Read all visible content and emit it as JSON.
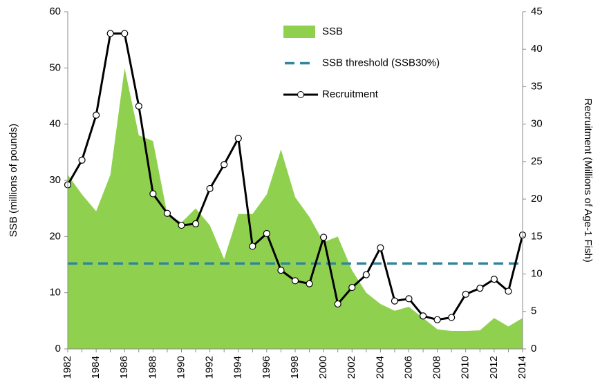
{
  "chart_data": {
    "type": "combo",
    "categories": [
      "1982",
      null,
      "1984",
      null,
      "1986",
      null,
      "1988",
      null,
      "1990",
      null,
      "1992",
      null,
      "1994",
      null,
      "1996",
      null,
      "1998",
      null,
      "2000",
      null,
      "2002",
      null,
      "2004",
      null,
      "2006",
      null,
      "2008",
      null,
      "2010",
      null,
      "2012",
      null,
      "2014"
    ],
    "series": [
      {
        "name": "SSB",
        "type": "area",
        "color": "#8fd14f",
        "values": [
          31,
          27.5,
          24.5,
          31,
          50,
          38,
          37,
          24,
          22.5,
          25,
          22,
          16,
          24,
          24,
          27.5,
          35.5,
          27,
          23.5,
          19,
          20,
          14,
          10,
          8,
          6.8,
          7.5,
          5.5,
          3.5,
          3.2,
          3.2,
          3.3,
          5.5,
          4,
          5.5
        ]
      },
      {
        "name": "SSB threshold (SSB30%)",
        "type": "hline",
        "color": "#31849b",
        "value": 15.2
      },
      {
        "name": "Recruitment",
        "type": "line",
        "axis": "y2",
        "color": "#000000",
        "values": [
          21.9,
          25.2,
          31.2,
          42.1,
          42.1,
          32.4,
          20.7,
          18.1,
          16.5,
          16.7,
          21.4,
          24.6,
          28.1,
          13.7,
          15.4,
          10.5,
          9.1,
          8.7,
          14.9,
          6.0,
          8.2,
          9.9,
          13.5,
          6.4,
          6.7,
          4.4,
          3.9,
          4.2,
          7.3,
          8.1,
          9.3,
          7.7,
          15.2
        ]
      }
    ],
    "y_label": "SSB (millions of pounds)",
    "y2_label": "Recruitment (Millions of Age-1 Fish)",
    "ylim": [
      0,
      60
    ],
    "yticks": [
      0,
      10,
      20,
      30,
      40,
      50,
      60
    ],
    "y2lim": [
      0,
      45
    ],
    "y2ticks": [
      0,
      5,
      10,
      15,
      20,
      25,
      30,
      35,
      40,
      45
    ],
    "legend": "top"
  }
}
